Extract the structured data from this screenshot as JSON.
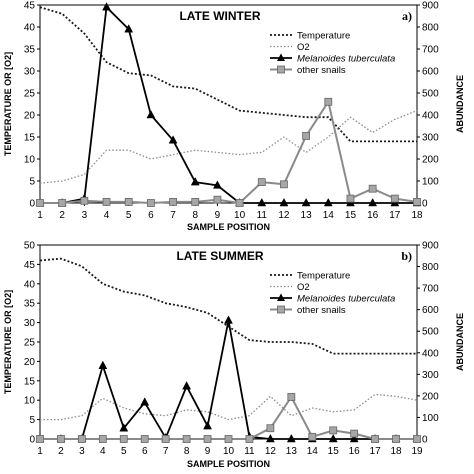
{
  "chart_data": [
    {
      "type": "line",
      "title": "LATE WINTER",
      "panel_label": "a)",
      "xlabel": "SAMPLE POSITION",
      "ylabel": "TEMPERATURE OR [O2]",
      "y2label": "ABUNDANCE",
      "x": [
        1,
        2,
        3,
        4,
        5,
        6,
        7,
        8,
        9,
        10,
        11,
        12,
        13,
        14,
        15,
        16,
        17,
        18
      ],
      "xlim": [
        1,
        18
      ],
      "ylim": [
        0,
        45
      ],
      "y2lim": [
        0,
        900
      ],
      "yticks": [
        0,
        5,
        10,
        15,
        20,
        25,
        30,
        35,
        40,
        45
      ],
      "y2ticks": [
        0,
        100,
        200,
        300,
        400,
        500,
        600,
        700,
        800,
        900
      ],
      "legend_position": "top-right",
      "series": [
        {
          "name": "Temperature",
          "axis": "left",
          "style": "dotted-dark",
          "values": [
            44.5,
            43,
            38.5,
            32,
            29.5,
            29,
            26.5,
            26,
            23.5,
            21,
            20.5,
            20,
            19.5,
            19.5,
            14,
            14,
            14,
            14
          ]
        },
        {
          "name": "O2",
          "axis": "left",
          "style": "dotted-light",
          "values": [
            4.5,
            5,
            6.5,
            12,
            12,
            10,
            11,
            12,
            11.5,
            11,
            11.5,
            15,
            11.5,
            15,
            19.5,
            16,
            19,
            21
          ]
        },
        {
          "name": "Melanoides tuberculata",
          "axis": "right",
          "style": "black-triangle",
          "italic": true,
          "values": [
            0,
            0,
            20,
            890,
            790,
            400,
            285,
            95,
            80,
            0,
            0,
            0,
            0,
            0,
            0,
            0,
            0,
            0
          ]
        },
        {
          "name": "other snails",
          "axis": "right",
          "style": "gray-square",
          "values": [
            0,
            0,
            10,
            5,
            5,
            0,
            5,
            5,
            15,
            0,
            95,
            85,
            305,
            460,
            20,
            65,
            20,
            5
          ]
        }
      ]
    },
    {
      "type": "line",
      "title": "LATE SUMMER",
      "panel_label": "b)",
      "xlabel": "SAMPLE POSITION",
      "ylabel": "TEMPERATURE OR [O2]",
      "y2label": "ABUNDANCE",
      "x": [
        1,
        2,
        3,
        4,
        5,
        6,
        7,
        8,
        9,
        10,
        11,
        12,
        13,
        14,
        15,
        16,
        17,
        18,
        19
      ],
      "xlim": [
        1,
        19
      ],
      "ylim": [
        0,
        50
      ],
      "y2lim": [
        0,
        900
      ],
      "yticks": [
        0,
        5,
        10,
        15,
        20,
        25,
        30,
        35,
        40,
        45,
        50
      ],
      "y2ticks": [
        0,
        100,
        200,
        300,
        400,
        500,
        600,
        700,
        800,
        900
      ],
      "legend_position": "top-right",
      "series": [
        {
          "name": "Temperature",
          "axis": "left",
          "style": "dotted-dark",
          "values": [
            46,
            46.5,
            44.5,
            40,
            38,
            37,
            35,
            34,
            32.5,
            29,
            25.5,
            25,
            25,
            24.5,
            22,
            22,
            22,
            22,
            22
          ]
        },
        {
          "name": "O2",
          "axis": "left",
          "style": "dotted-light",
          "values": [
            5,
            5,
            6,
            10.5,
            8,
            6.5,
            6,
            7.5,
            7,
            5,
            6,
            11,
            6,
            8,
            7,
            7.5,
            11.5,
            11,
            10
          ]
        },
        {
          "name": "Melanoides tuberculata",
          "axis": "right",
          "style": "black-triangle",
          "italic": true,
          "values": [
            0,
            0,
            0,
            340,
            50,
            170,
            5,
            245,
            60,
            550,
            10,
            0,
            0,
            0,
            0,
            0,
            0,
            0,
            0
          ]
        },
        {
          "name": "other snails",
          "axis": "right",
          "style": "gray-square",
          "values": [
            0,
            0,
            0,
            0,
            0,
            0,
            0,
            0,
            0,
            0,
            0,
            50,
            195,
            10,
            40,
            25,
            0,
            0,
            0
          ]
        }
      ]
    }
  ]
}
